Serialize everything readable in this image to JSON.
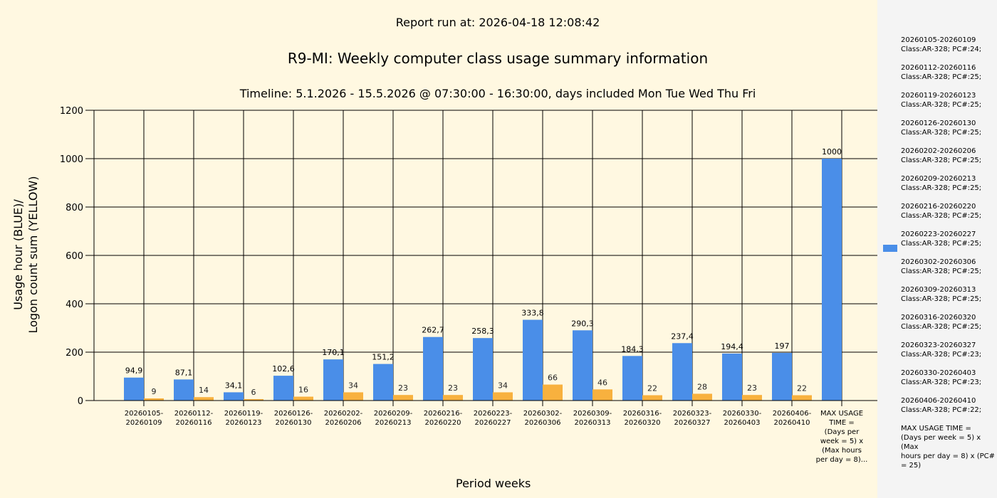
{
  "header": {
    "run": "Report run at: 2026-04-18 12:08:42",
    "title": "R9-MI: Weekly computer class usage summary information",
    "subtitle": "Timeline:  5.1.2026  - 15.5.2026  @  07:30:00 -  16:30:00, days included Mon Tue Wed Thu Fri"
  },
  "chart_data": {
    "type": "bar",
    "title": "R9-MI: Weekly computer class usage summary information",
    "xlabel": "Period weeks",
    "ylabel": [
      "Usage hour (BLUE)/",
      "Logon count sum (YELLOW)"
    ],
    "ylim": [
      0,
      1200
    ],
    "yticks": [
      0,
      200,
      400,
      600,
      800,
      1000,
      1200
    ],
    "grid": true,
    "legend_placement": "right",
    "colors": {
      "blue": "#4a8ee8",
      "yellow": "#f8b13e"
    },
    "categories": [
      [
        "20260105-",
        "20260109"
      ],
      [
        "20260112-",
        "20260116"
      ],
      [
        "20260119-",
        "20260123"
      ],
      [
        "20260126-",
        "20260130"
      ],
      [
        "20260202-",
        "20260206"
      ],
      [
        "20260209-",
        "20260213"
      ],
      [
        "20260216-",
        "20260220"
      ],
      [
        "20260223-",
        "20260227"
      ],
      [
        "20260302-",
        "20260306"
      ],
      [
        "20260309-",
        "20260313"
      ],
      [
        "20260316-",
        "20260320"
      ],
      [
        "20260323-",
        "20260327"
      ],
      [
        "20260330-",
        "20260403"
      ],
      [
        "20260406-",
        "20260410"
      ],
      [
        "MAX USAGE",
        "TIME =",
        "(Days per",
        "week = 5) x",
        "(Max hours",
        "per day = 8)..."
      ]
    ],
    "series": [
      {
        "name": "Usage hour",
        "color": "blue",
        "values": [
          94.9,
          87.1,
          34.1,
          102.6,
          170.1,
          151.2,
          262.7,
          258.3,
          333.8,
          290.3,
          184.3,
          237.4,
          194.4,
          197,
          1000
        ],
        "labels": [
          "94,9",
          "87,1",
          "34,1",
          "102,6",
          "170,1",
          "151,2",
          "262,7",
          "258,3",
          "333,8",
          "290,3",
          "184,3",
          "237,4",
          "194,4",
          "197",
          "1000"
        ]
      },
      {
        "name": "Logon count sum",
        "color": "yellow",
        "values": [
          9,
          14,
          6,
          16,
          34,
          23,
          23,
          34,
          66,
          46,
          22,
          28,
          23,
          22,
          null
        ],
        "labels": [
          "9",
          "14",
          "6",
          "16",
          "34",
          "23",
          "23",
          "34",
          "66",
          "46",
          "22",
          "28",
          "23",
          "22",
          ""
        ]
      }
    ],
    "legend": [
      "20260105-20260109\nClass:AR-328; PC#:24;",
      "20260112-20260116\nClass:AR-328; PC#:25;",
      "20260119-20260123\nClass:AR-328; PC#:25;",
      "20260126-20260130\nClass:AR-328; PC#:25;",
      "20260202-20260206\nClass:AR-328; PC#:25;",
      "20260209-20260213\nClass:AR-328; PC#:25;",
      "20260216-20260220\nClass:AR-328; PC#:25;",
      "20260223-20260227\nClass:AR-328; PC#:25;",
      "20260302-20260306\nClass:AR-328; PC#:25;",
      "20260309-20260313\nClass:AR-328; PC#:25;",
      "20260316-20260320\nClass:AR-328; PC#:25;",
      "20260323-20260327\nClass:AR-328; PC#:23;",
      "20260330-20260403\nClass:AR-328; PC#:23;",
      "20260406-20260410\nClass:AR-328; PC#:22;",
      "MAX USAGE TIME =\n (Days per week = 5) x (Max\nhours per day = 8) x (PC#\n= 25)"
    ]
  }
}
